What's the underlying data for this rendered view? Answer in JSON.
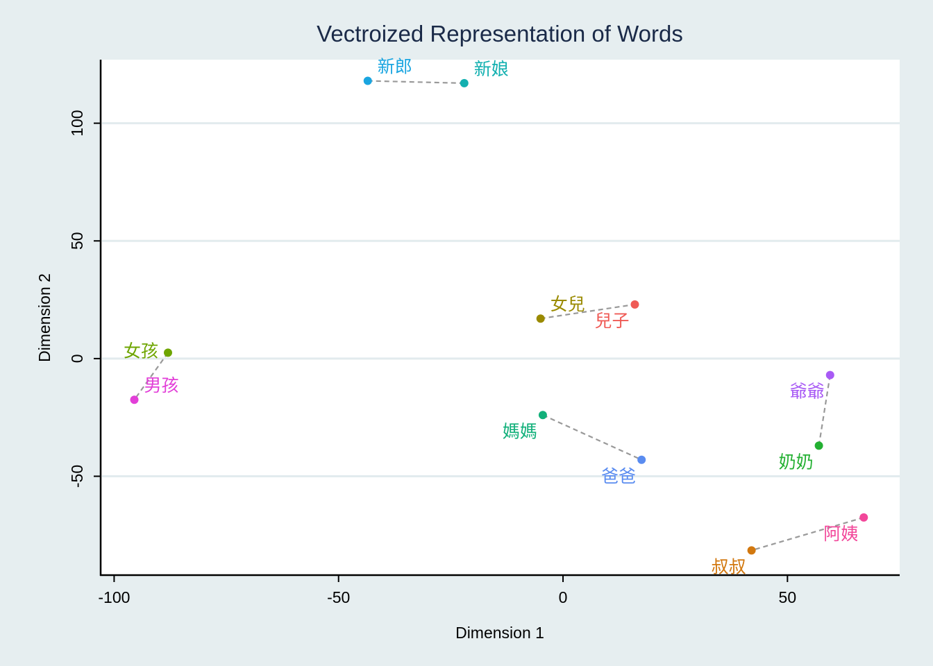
{
  "chart_data": {
    "type": "scatter",
    "title": "Vectroized Representation of Words",
    "xlabel": "Dimension 1",
    "ylabel": "Dimension 2",
    "xlim": [
      -103,
      75
    ],
    "ylim": [
      -92,
      127
    ],
    "xticks": [
      -100,
      -50,
      0,
      50
    ],
    "yticks": [
      -50,
      0,
      50,
      100
    ],
    "grid": "horizontal",
    "legend": "none",
    "points": [
      {
        "label": "新郎",
        "x": -43.5,
        "y": 118.0,
        "color": "#1aa5e0",
        "label_pos": "upper-right"
      },
      {
        "label": "新娘",
        "x": -22.0,
        "y": 117.0,
        "color": "#13b0b0",
        "label_pos": "upper-right"
      },
      {
        "label": "女兒",
        "x": -5.0,
        "y": 17.0,
        "color": "#9a8a00",
        "label_pos": "upper-right"
      },
      {
        "label": "兒子",
        "x": 16.0,
        "y": 23.0,
        "color": "#ef5a55",
        "label_pos": "lower-left"
      },
      {
        "label": "女孩",
        "x": -88.0,
        "y": 2.5,
        "color": "#6ea500",
        "label_pos": "left"
      },
      {
        "label": "男孩",
        "x": -95.5,
        "y": -17.5,
        "color": "#e23fd8",
        "label_pos": "upper-right"
      },
      {
        "label": "媽媽",
        "x": -4.5,
        "y": -24.0,
        "color": "#12b07a",
        "label_pos": "lower-left"
      },
      {
        "label": "爸爸",
        "x": 17.5,
        "y": -43.0,
        "color": "#5a8cf0",
        "label_pos": "lower-left"
      },
      {
        "label": "爺爺",
        "x": 59.5,
        "y": -7.0,
        "color": "#a85af5",
        "label_pos": "lower-left"
      },
      {
        "label": "奶奶",
        "x": 57.0,
        "y": -37.0,
        "color": "#23b032",
        "label_pos": "lower-left"
      },
      {
        "label": "阿姨",
        "x": 67.0,
        "y": -67.5,
        "color": "#f2479a",
        "label_pos": "lower-left"
      },
      {
        "label": "叔叔",
        "x": 42.0,
        "y": -81.5,
        "color": "#d2780f",
        "label_pos": "lower-left"
      }
    ],
    "pairs": [
      [
        "新郎",
        "新娘"
      ],
      [
        "女兒",
        "兒子"
      ],
      [
        "女孩",
        "男孩"
      ],
      [
        "媽媽",
        "爸爸"
      ],
      [
        "爺爺",
        "奶奶"
      ],
      [
        "阿姨",
        "叔叔"
      ]
    ],
    "connector_color": "#999999",
    "grid_color": "#e2ebee",
    "axis_color": "#000000"
  }
}
